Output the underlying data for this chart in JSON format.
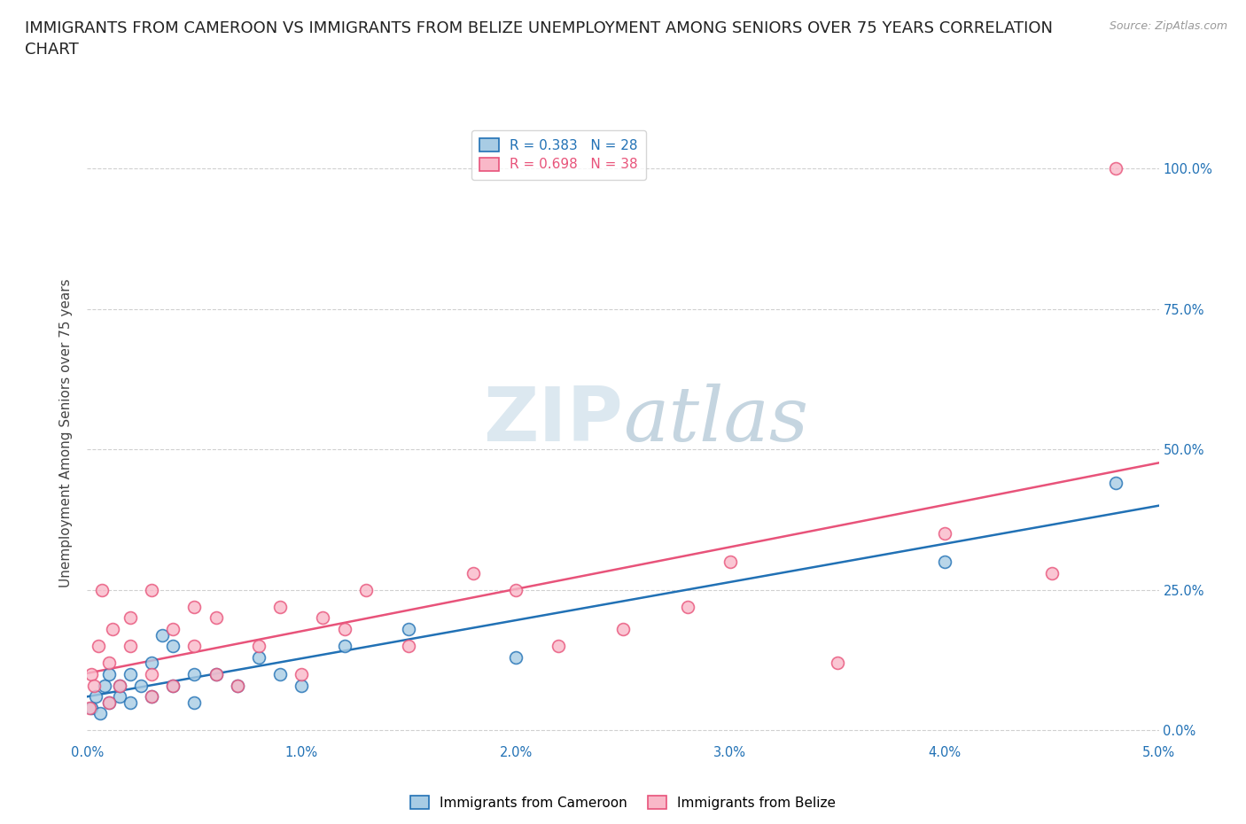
{
  "title": "IMMIGRANTS FROM CAMEROON VS IMMIGRANTS FROM BELIZE UNEMPLOYMENT AMONG SENIORS OVER 75 YEARS CORRELATION\nCHART",
  "source": "Source: ZipAtlas.com",
  "ylabel": "Unemployment Among Seniors over 75 years",
  "xlim": [
    0.0,
    0.05
  ],
  "ylim": [
    -0.02,
    1.08
  ],
  "xticks": [
    0.0,
    0.01,
    0.02,
    0.03,
    0.04,
    0.05
  ],
  "yticks": [
    0.0,
    0.25,
    0.5,
    0.75,
    1.0
  ],
  "ytick_labels": [
    "0.0%",
    "25.0%",
    "50.0%",
    "75.0%",
    "100.0%"
  ],
  "xtick_labels": [
    "0.0%",
    "1.0%",
    "2.0%",
    "3.0%",
    "4.0%",
    "5.0%"
  ],
  "cameroon_R": 0.383,
  "cameroon_N": 28,
  "belize_R": 0.698,
  "belize_N": 38,
  "cameroon_color": "#a8cce4",
  "belize_color": "#f9b8c8",
  "cameroon_line_color": "#2171b5",
  "belize_line_color": "#e8537a",
  "legend_label_cameroon": "Immigrants from Cameroon",
  "legend_label_belize": "Immigrants from Belize",
  "watermark": "ZIPatlas",
  "watermark_color": "#d0dfe8",
  "cameroon_x": [
    0.0002,
    0.0004,
    0.0006,
    0.0008,
    0.001,
    0.001,
    0.0015,
    0.0015,
    0.002,
    0.002,
    0.0025,
    0.003,
    0.003,
    0.0035,
    0.004,
    0.004,
    0.005,
    0.005,
    0.006,
    0.007,
    0.008,
    0.009,
    0.01,
    0.012,
    0.015,
    0.02,
    0.04,
    0.048
  ],
  "cameroon_y": [
    0.04,
    0.06,
    0.03,
    0.08,
    0.05,
    0.1,
    0.06,
    0.08,
    0.05,
    0.1,
    0.08,
    0.06,
    0.12,
    0.17,
    0.08,
    0.15,
    0.1,
    0.05,
    0.1,
    0.08,
    0.13,
    0.1,
    0.08,
    0.15,
    0.18,
    0.13,
    0.3,
    0.44
  ],
  "belize_x": [
    0.0001,
    0.0002,
    0.0003,
    0.0005,
    0.0007,
    0.001,
    0.001,
    0.0012,
    0.0015,
    0.002,
    0.002,
    0.003,
    0.003,
    0.003,
    0.004,
    0.004,
    0.005,
    0.005,
    0.006,
    0.006,
    0.007,
    0.008,
    0.009,
    0.01,
    0.011,
    0.012,
    0.013,
    0.015,
    0.018,
    0.02,
    0.022,
    0.025,
    0.028,
    0.03,
    0.035,
    0.04,
    0.045,
    0.048
  ],
  "belize_y": [
    0.04,
    0.1,
    0.08,
    0.15,
    0.25,
    0.05,
    0.12,
    0.18,
    0.08,
    0.15,
    0.2,
    0.06,
    0.1,
    0.25,
    0.08,
    0.18,
    0.15,
    0.22,
    0.1,
    0.2,
    0.08,
    0.15,
    0.22,
    0.1,
    0.2,
    0.18,
    0.25,
    0.15,
    0.28,
    0.25,
    0.15,
    0.18,
    0.22,
    0.3,
    0.12,
    0.35,
    0.28,
    1.0
  ],
  "background_color": "#ffffff",
  "grid_color": "#d0d0d0",
  "title_fontsize": 13,
  "label_fontsize": 11,
  "tick_fontsize": 10.5,
  "legend_fontsize": 11
}
